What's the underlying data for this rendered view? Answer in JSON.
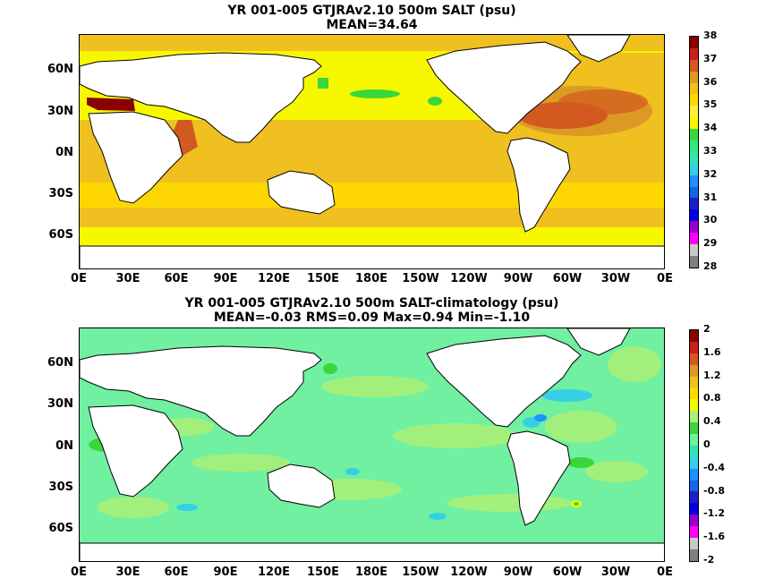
{
  "panel1": {
    "title_line1": "YR 001-005 GTJRAv2.10 500m SALT (psu)",
    "title_line2": "MEAN=34.64",
    "colorbar_labels": [
      "38",
      "37",
      "36",
      "35",
      "34",
      "33",
      "32",
      "31",
      "30",
      "29",
      "28"
    ],
    "colorbar_colors": [
      "#8a0000",
      "#c8201a",
      "#d25a20",
      "#dc9a25",
      "#f0c020",
      "#ffd700",
      "#ffee40",
      "#f7f700",
      "#3ad63a",
      "#32e680",
      "#30e6b4",
      "#36d0e6",
      "#1e90ff",
      "#1464e6",
      "#1e1ec8",
      "#0000e6",
      "#9600c8",
      "#ff00ff",
      "#c8c8c8",
      "#808080"
    ]
  },
  "panel2": {
    "title_line1": "YR 001-005 GTJRAv2.10 500m SALT-climatology (psu)",
    "title_line2": "MEAN=-0.03   RMS=0.09   Max=0.94   Min=-1.10",
    "colorbar_labels": [
      "2",
      "1.6",
      "1.2",
      "0.8",
      "0.4",
      "0",
      "-0.4",
      "-0.8",
      "-1.2",
      "-1.6",
      "-2"
    ],
    "colorbar_colors": [
      "#8a0000",
      "#c8201a",
      "#d25a20",
      "#dc9a25",
      "#f0c020",
      "#ffd700",
      "#f7f700",
      "#a8f078",
      "#3ad63a",
      "#70f0a0",
      "#32e6b4",
      "#36d0e6",
      "#1e90ff",
      "#1464e6",
      "#1e1ec8",
      "#0000e6",
      "#9600c8",
      "#ff00ff",
      "#c8c8c8",
      "#808080"
    ]
  },
  "axes": {
    "lat_labels": [
      "60N",
      "30N",
      "0N",
      "30S",
      "60S"
    ],
    "lon_labels": [
      "0E",
      "30E",
      "60E",
      "90E",
      "120E",
      "150E",
      "180E",
      "150W",
      "120W",
      "90W",
      "60W",
      "30W",
      "0E"
    ]
  }
}
